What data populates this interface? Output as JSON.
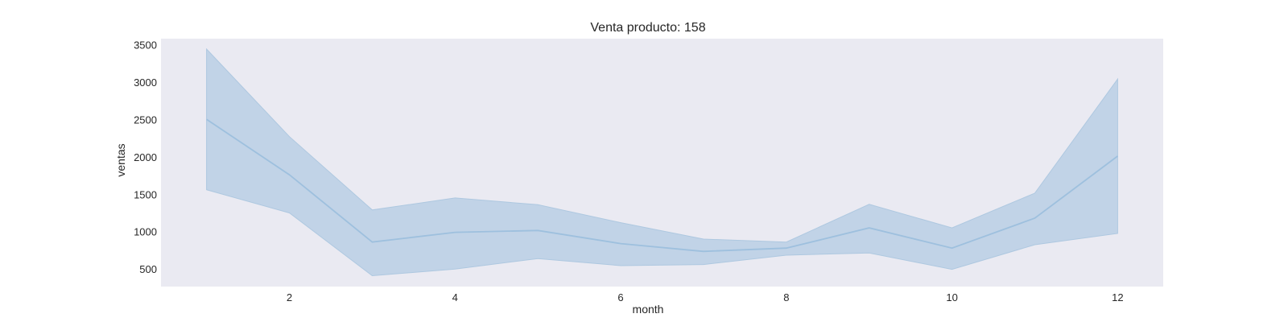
{
  "chart_data": {
    "type": "line",
    "title": "Venta producto: 158",
    "xlabel": "month",
    "ylabel": "ventas",
    "xlim": [
      0.45,
      12.55
    ],
    "ylim": [
      265,
      3580
    ],
    "xticks": [
      2,
      4,
      6,
      8,
      10,
      12
    ],
    "yticks": [
      500,
      1000,
      1500,
      2000,
      2500,
      3000,
      3500
    ],
    "grid": false,
    "legend": "none",
    "colors": {
      "plot_background": "#eaeaf2",
      "line": "#9ec0de",
      "band_fill": "#9ec0de",
      "band_edge": "#aec8e0"
    },
    "series": [
      {
        "x": [
          1,
          2,
          3,
          4,
          5,
          6,
          7,
          8,
          9,
          10,
          11,
          12
        ],
        "values": [
          2500,
          1760,
          860,
          990,
          1015,
          840,
          735,
          780,
          1050,
          780,
          1180,
          2010
        ],
        "lower": [
          1560,
          1250,
          410,
          500,
          640,
          545,
          560,
          685,
          715,
          495,
          825,
          975
        ],
        "upper": [
          3440,
          2270,
          1290,
          1450,
          1360,
          1120,
          900,
          860,
          1365,
          1050,
          1515,
          3040
        ]
      }
    ]
  }
}
